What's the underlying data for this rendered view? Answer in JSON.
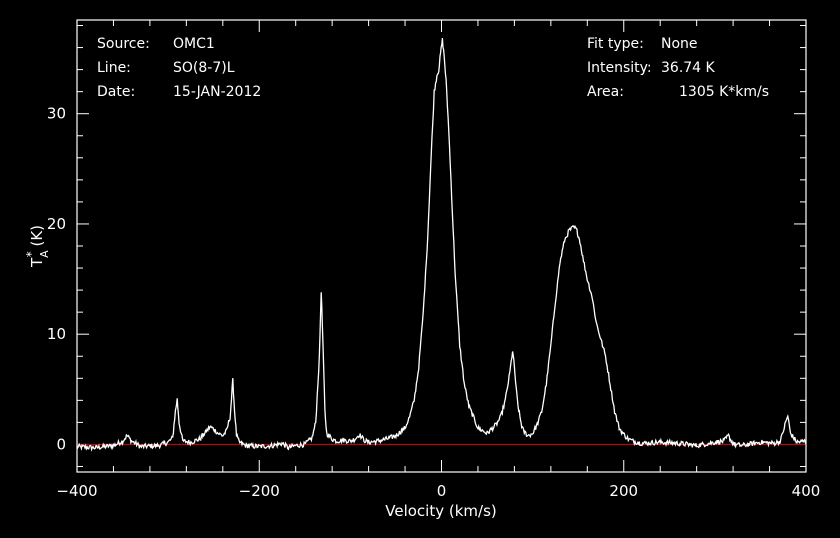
{
  "header": {
    "source_label": "Source:",
    "source_value": "OMC1",
    "line_label": "Line:",
    "line_value": "SO(8-7)L",
    "date_label": "Date:",
    "date_value": "15-JAN-2012",
    "fit_label": "Fit type:",
    "fit_value": "None",
    "intensity_label": "Intensity:",
    "intensity_value": "36.74 K",
    "area_label": "Area:",
    "area_value": "1305 K*km/s"
  },
  "colors": {
    "background": "#000000",
    "spectrum": "#ffffff",
    "baseline": "#cc0000",
    "axes": "#ffffff"
  },
  "chart_data": {
    "type": "line",
    "title": "",
    "xlabel": "Velocity (km/s)",
    "ylabel_main": "T",
    "ylabel_sub": "A",
    "ylabel_sup": "*",
    "ylabel_tail": " (K)",
    "xlim": [
      -400,
      400
    ],
    "ylim": [
      -2.5,
      38.5
    ],
    "xticks": [
      -400,
      -200,
      0,
      200,
      400
    ],
    "xtick_labels": [
      "−400",
      "−200",
      "0",
      "200",
      "400"
    ],
    "yticks": [
      0,
      10,
      20,
      30
    ],
    "ytick_labels": [
      "0",
      "10",
      "20",
      "30"
    ],
    "grid": false,
    "baseline_y": 0,
    "series": [
      {
        "x": [
          -400,
          -380,
          -360,
          -350,
          -345,
          -340,
          -330,
          -310,
          -300,
          -295,
          -292,
          -290,
          -288,
          -284,
          -275,
          -265,
          -258,
          -254,
          -250,
          -245,
          -240,
          -236,
          -232,
          -229,
          -227,
          -225,
          -222,
          -215,
          -200,
          -185,
          -175,
          -168,
          -160,
          -150,
          -142,
          -138,
          -134,
          -132,
          -130,
          -128,
          -126,
          -120,
          -115,
          -108,
          -100,
          -95,
          -90,
          -85,
          -80,
          -70,
          -60,
          -50,
          -40,
          -35,
          -30,
          -25,
          -20,
          -15,
          -12,
          -8,
          -5,
          -3,
          -1,
          1,
          3,
          5,
          8,
          12,
          15,
          20,
          25,
          30,
          40,
          50,
          60,
          65,
          70,
          75,
          78,
          80,
          82,
          84,
          86,
          88,
          90,
          95,
          100,
          105,
          110,
          115,
          120,
          125,
          130,
          135,
          140,
          145,
          148,
          150,
          152,
          155,
          160,
          165,
          170,
          175,
          180,
          185,
          190,
          195,
          200,
          205,
          210,
          220,
          240,
          260,
          280,
          300,
          310,
          315,
          318,
          322,
          330,
          350,
          365,
          372,
          377,
          380,
          383,
          390,
          400
        ],
        "y": [
          -0.2,
          -0.3,
          -0.1,
          0.3,
          0.8,
          0.3,
          -0.2,
          -0.1,
          0.2,
          0.6,
          3.0,
          4.1,
          2.0,
          0.3,
          0.2,
          0.5,
          1.2,
          1.6,
          1.4,
          1.0,
          0.8,
          1.2,
          2.5,
          5.8,
          3.0,
          0.8,
          0.2,
          -0.1,
          -0.2,
          -0.1,
          0.1,
          -0.3,
          -0.1,
          0.0,
          0.6,
          2.0,
          8.0,
          14.0,
          9.0,
          3.0,
          1.0,
          0.5,
          0.3,
          0.4,
          0.3,
          0.5,
          0.9,
          0.4,
          0.2,
          0.3,
          0.5,
          0.8,
          1.5,
          2.5,
          4.0,
          7.0,
          12.0,
          19.0,
          25.0,
          32.0,
          33.5,
          34.0,
          35.5,
          36.7,
          35.2,
          33.0,
          28.5,
          21.0,
          15.5,
          9.0,
          5.5,
          3.5,
          1.5,
          1.0,
          1.8,
          2.5,
          4.0,
          6.5,
          8.5,
          7.0,
          5.0,
          3.5,
          2.5,
          1.7,
          1.2,
          0.8,
          1.0,
          1.8,
          3.0,
          5.5,
          9.0,
          13.0,
          16.5,
          18.5,
          19.4,
          19.7,
          19.5,
          19.0,
          18.4,
          17.0,
          15.0,
          13.5,
          11.0,
          9.5,
          8.0,
          5.5,
          3.0,
          1.5,
          0.9,
          0.5,
          0.3,
          0.1,
          0.2,
          0.1,
          -0.1,
          0.2,
          0.3,
          0.8,
          0.3,
          0.0,
          -0.1,
          0.2,
          0.1,
          0.3,
          1.8,
          2.6,
          1.0,
          0.2,
          0.3
        ]
      }
    ]
  }
}
